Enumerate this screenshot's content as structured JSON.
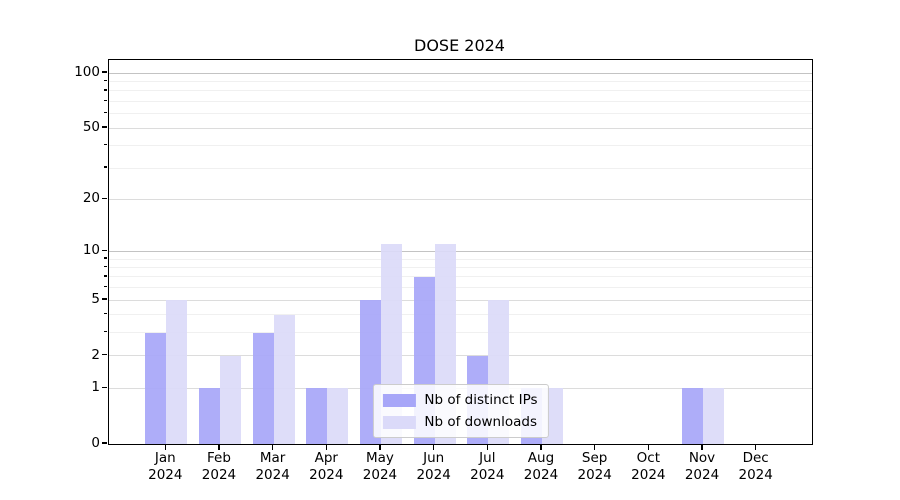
{
  "title": "DOSE 2024",
  "chart_data": {
    "type": "bar",
    "title": "DOSE 2024",
    "xlabel": "",
    "ylabel": "",
    "year": "2024",
    "categories": [
      "Jan",
      "Feb",
      "Mar",
      "Apr",
      "May",
      "Jun",
      "Jul",
      "Aug",
      "Sep",
      "Oct",
      "Nov",
      "Dec"
    ],
    "series": [
      {
        "name": "Nb of distinct IPs",
        "color": "#a7a6f8",
        "values": [
          3,
          1,
          3,
          1,
          5,
          7,
          2,
          1,
          0,
          0,
          1,
          0
        ]
      },
      {
        "name": "Nb of downloads",
        "color": "#dbdaf9",
        "values": [
          5,
          2,
          4,
          1,
          11,
          11,
          5,
          1,
          0,
          0,
          1,
          0
        ]
      }
    ],
    "y_scale": "log1p",
    "y_max": 118,
    "y_ticks_major": [
      0,
      1,
      2,
      5,
      10,
      20,
      50,
      100
    ],
    "y_ticks_minor": [
      3,
      4,
      6,
      7,
      8,
      9,
      30,
      40,
      60,
      70,
      80,
      90
    ],
    "y_decade_ticks": [
      10,
      100
    ],
    "grid": "on",
    "legend_position": "lower center"
  },
  "colors": {
    "axis": "#000000",
    "grid_minor": "#f0f0f0",
    "grid_major": "#dcdcdc",
    "grid_decade": "#c3c3c3",
    "legend_border": "#cccccc",
    "background": "#ffffff"
  }
}
